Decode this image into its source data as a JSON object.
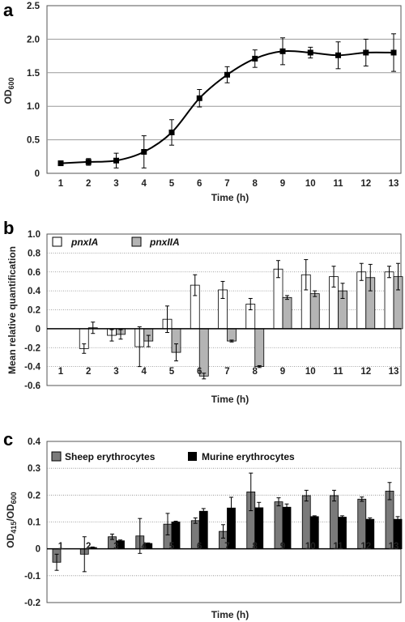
{
  "chart_data": [
    {
      "panel": "a",
      "type": "line",
      "xlabel": "Time (h)",
      "ylabel": "OD",
      "ylabel_sub": "600",
      "x": [
        1,
        2,
        3,
        4,
        5,
        6,
        7,
        8,
        9,
        10,
        11,
        12,
        13
      ],
      "ylim": [
        0,
        2.5
      ],
      "yticks": [
        "0",
        "0.5",
        "1.0",
        "1.5",
        "2.0",
        "2.5"
      ],
      "grid": true,
      "series": [
        {
          "values": [
            0.15,
            0.17,
            0.19,
            0.32,
            0.61,
            1.12,
            1.47,
            1.71,
            1.82,
            1.8,
            1.76,
            1.8,
            1.8
          ],
          "errors": [
            0.02,
            0.05,
            0.11,
            0.24,
            0.19,
            0.13,
            0.12,
            0.13,
            0.2,
            0.08,
            0.2,
            0.2,
            0.28
          ]
        }
      ]
    },
    {
      "panel": "b",
      "type": "bar",
      "xlabel": "Time (h)",
      "ylabel": "Mean relative quantification",
      "categories": [
        "1",
        "2",
        "3",
        "4",
        "5",
        "6",
        "7",
        "8",
        "9",
        "10",
        "11",
        "12",
        "13"
      ],
      "ylim": [
        -0.6,
        1.0
      ],
      "yticks": [
        "1.0",
        "0.8",
        "0.6",
        "0.4",
        "0.2",
        "0",
        "-0.2",
        "-0.4",
        "-0.6"
      ],
      "grid": true,
      "legend": "top-left",
      "series": [
        {
          "name": "pnxIA",
          "color": "#ffffff",
          "values": [
            0,
            -0.21,
            -0.07,
            -0.19,
            0.1,
            0.46,
            0.41,
            0.26,
            0.63,
            0.57,
            0.55,
            0.6,
            0.6
          ],
          "errors": [
            0,
            0.05,
            0.06,
            0.21,
            0.14,
            0.11,
            0.09,
            0.06,
            0.09,
            0.16,
            0.11,
            0.09,
            0.06
          ]
        },
        {
          "name": "pnxIIA",
          "color": "#b4b4b4",
          "values": [
            0,
            0.01,
            -0.06,
            -0.13,
            -0.25,
            -0.5,
            -0.13,
            -0.4,
            0.33,
            0.37,
            0.4,
            0.54,
            0.55
          ],
          "errors": [
            0,
            0.06,
            0.05,
            0.06,
            0.09,
            0.03,
            0.01,
            0.01,
            0.02,
            0.03,
            0.08,
            0.14,
            0.14
          ]
        }
      ]
    },
    {
      "panel": "c",
      "type": "bar",
      "xlabel": "Time (h)",
      "ylabel": "OD",
      "ylabel_sub": "415",
      "ylabel_mid": "/OD",
      "ylabel_sub2": "600",
      "categories": [
        "1",
        "2",
        "3",
        "4",
        "5",
        "6",
        "7",
        "8",
        "9",
        "10",
        "11",
        "12",
        "13"
      ],
      "ylim": [
        -0.2,
        0.4
      ],
      "yticks": [
        "0.4",
        "0.3",
        "0.2",
        "0.1",
        "0",
        "-0.1",
        "-0.2"
      ],
      "grid": true,
      "legend": "top-left",
      "series": [
        {
          "name": "Sheep erythrocytes",
          "color": "#7a7a7a",
          "values": [
            -0.05,
            -0.02,
            0.045,
            0.048,
            0.092,
            0.105,
            0.065,
            0.212,
            0.175,
            0.198,
            0.198,
            0.185,
            0.215
          ],
          "errors": [
            0.03,
            0.065,
            0.01,
            0.065,
            0.04,
            0.01,
            0.025,
            0.07,
            0.015,
            0.02,
            0.02,
            0.008,
            0.032
          ]
        },
        {
          "name": "Murine erythrocytes",
          "color": "#000000",
          "values": [
            0,
            0.005,
            0.03,
            0.02,
            0.1,
            0.14,
            0.152,
            0.153,
            0.155,
            0.12,
            0.118,
            0.11,
            0.11
          ],
          "errors": [
            0,
            0.002,
            0.003,
            0.002,
            0.003,
            0.01,
            0.04,
            0.02,
            0.012,
            0.003,
            0.005,
            0.005,
            0.01
          ]
        }
      ]
    }
  ]
}
